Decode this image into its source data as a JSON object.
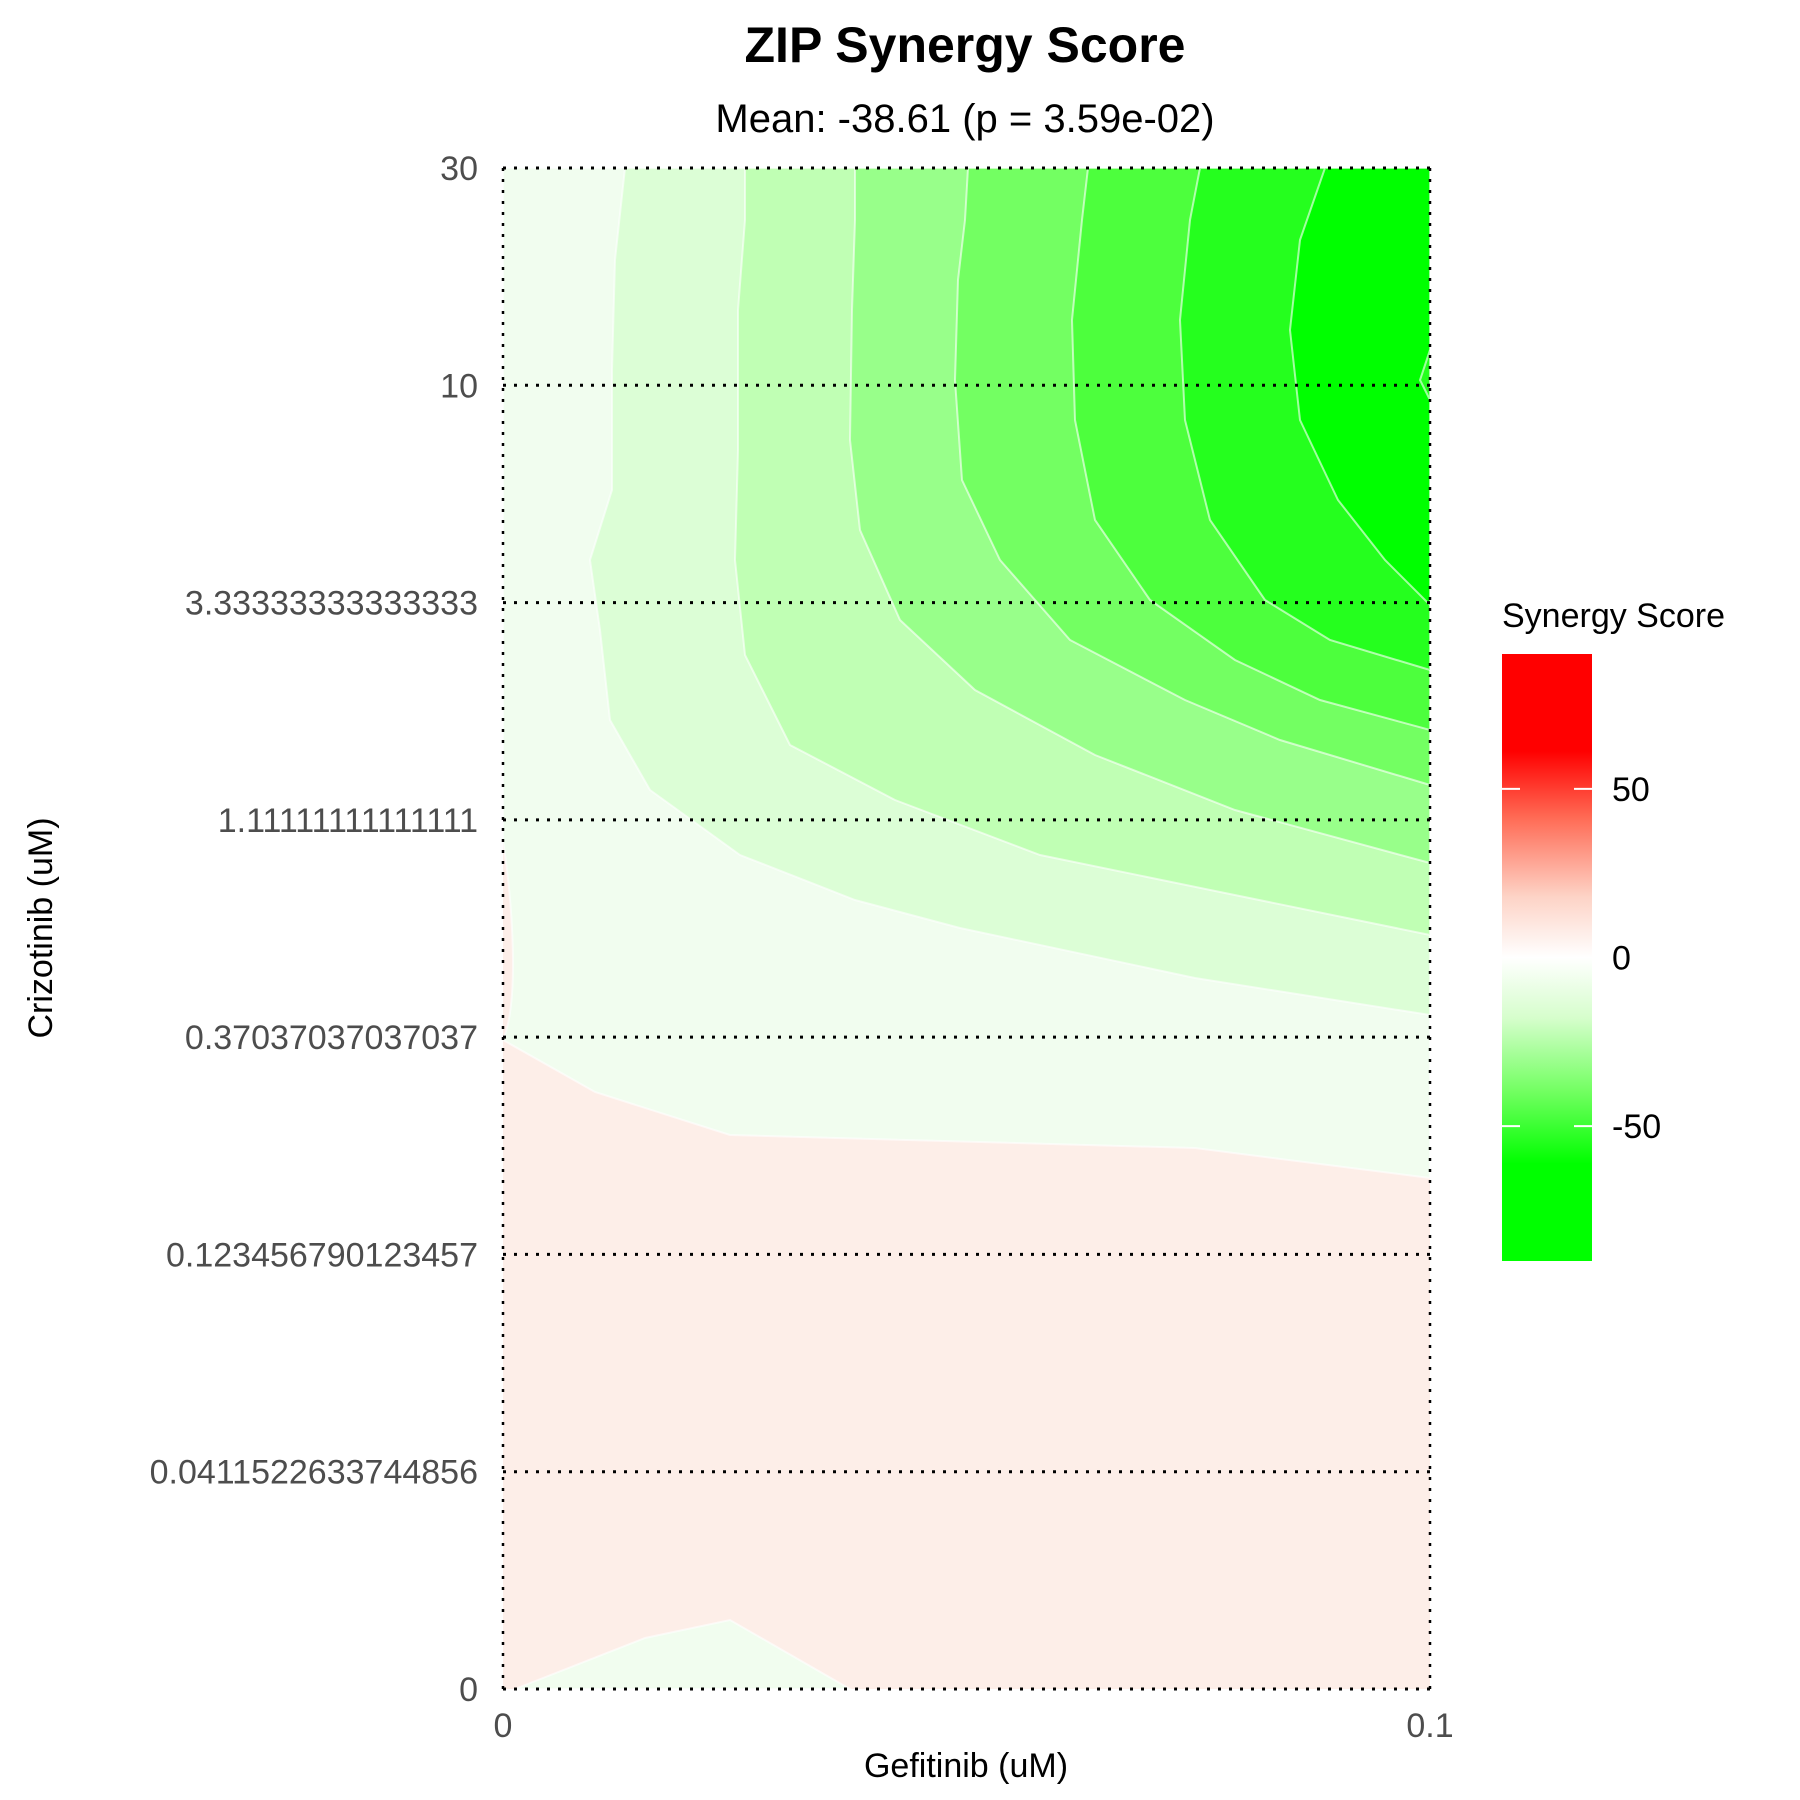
{
  "chart_data": {
    "type": "heatmap",
    "title": "ZIP Synergy Score",
    "subtitle": "Mean: -38.61 (p = 3.59e-02)",
    "xlabel": "Gefitinib (uM)",
    "ylabel": "Crizotinib (uM)",
    "x_ticks": [
      "0",
      "0.1"
    ],
    "y_ticks": [
      "0",
      "0.0411522633744856",
      "0.123456790123457",
      "0.37037037037037",
      "1.11111111111111",
      "3.33333333333333",
      "10",
      "30"
    ],
    "grid": true,
    "legend": {
      "title": "Synergy Score",
      "position": "right",
      "labels": [
        "50",
        "0",
        "-50"
      ],
      "label_values": [
        50,
        0,
        -50
      ],
      "range": [
        -90,
        90
      ],
      "colors": {
        "high": "#ff0000",
        "mid": "#ffffff",
        "low": "#00ff00"
      }
    },
    "contour_levels": [
      {
        "level": 10,
        "color": "#fdeee8"
      },
      {
        "level": -10,
        "color": "#f1fdef"
      },
      {
        "level": -20,
        "color": "#dcfed6"
      },
      {
        "level": -30,
        "color": "#c0ffb4"
      },
      {
        "level": -40,
        "color": "#98ff8a"
      },
      {
        "level": -50,
        "color": "#73ff62"
      },
      {
        "level": -60,
        "color": "#4dff3d"
      },
      {
        "level": -70,
        "color": "#25ff1e"
      },
      {
        "level": -80,
        "color": "#00ff00"
      }
    ]
  }
}
